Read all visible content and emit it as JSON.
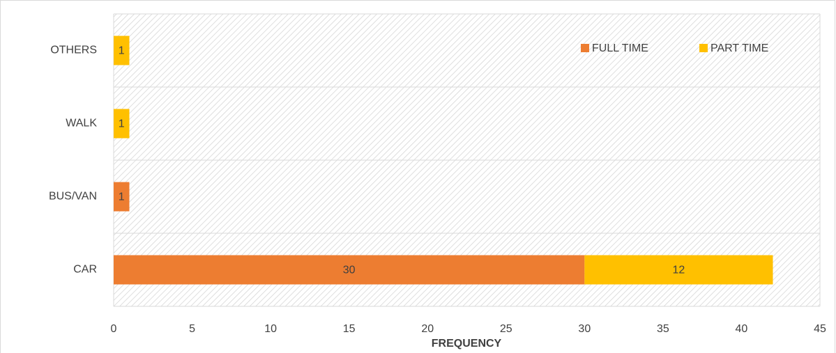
{
  "chart_data": {
    "type": "bar",
    "orientation": "horizontal",
    "stacked": true,
    "categories": [
      "CAR",
      "BUS/VAN",
      "WALK",
      "OTHERS"
    ],
    "series": [
      {
        "name": "FULL TIME",
        "color": "#ED7D31",
        "values": [
          30,
          1,
          0,
          0
        ]
      },
      {
        "name": "PART TIME",
        "color": "#FFC000",
        "values": [
          12,
          0,
          1,
          1
        ]
      }
    ],
    "x_label": "FREQUENCY",
    "xlim": [
      0,
      45
    ],
    "xticks": [
      0,
      5,
      10,
      15,
      20,
      25,
      30,
      35,
      40,
      45
    ],
    "legend": "top-right"
  }
}
